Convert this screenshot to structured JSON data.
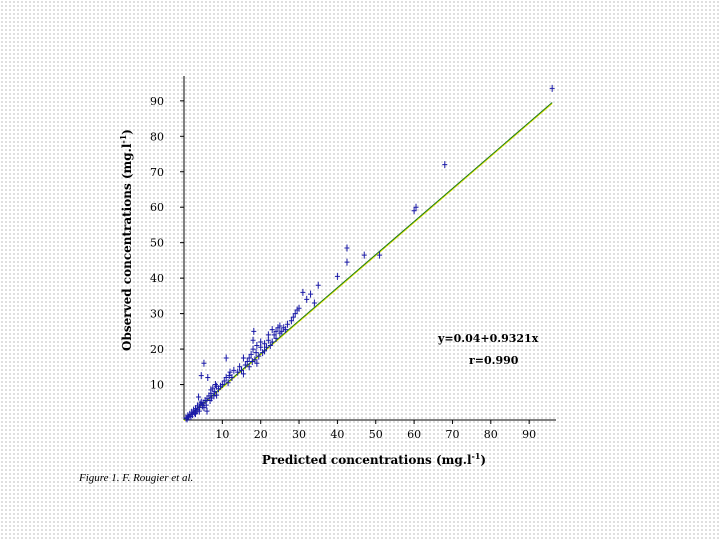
{
  "chart_data": {
    "type": "scatter",
    "xlabel": "Predicted concentrations (mg.l",
    "xlabel_sup": "-1",
    "xlabel_end": ")",
    "ylabel": "Observed concentrations (mg.l",
    "ylabel_sup": "-1",
    "ylabel_end": ")",
    "xlim": [
      0,
      97
    ],
    "ylim": [
      0,
      97
    ],
    "xticks": [
      10,
      20,
      30,
      40,
      50,
      60,
      70,
      80,
      90
    ],
    "yticks": [
      10,
      20,
      30,
      40,
      50,
      60,
      70,
      80,
      90
    ],
    "grid": false,
    "marker_color": "#1a1aa8",
    "fit_color_outer": "#e3e300",
    "fit_color_inner": "#1a7a1a",
    "annotations": {
      "equation": "y=0.04+0.9321x",
      "r": "r=0.990"
    },
    "fit_line": {
      "intercept": 0.04,
      "slope": 0.9321,
      "x_range": [
        0,
        96
      ]
    },
    "points": [
      [
        0.5,
        0.6
      ],
      [
        0.8,
        0.3
      ],
      [
        1,
        1.2
      ],
      [
        1.2,
        0.8
      ],
      [
        1.5,
        1.6
      ],
      [
        1.8,
        1
      ],
      [
        2,
        2.2
      ],
      [
        2.2,
        1.5
      ],
      [
        2.5,
        2.8
      ],
      [
        2.8,
        2
      ],
      [
        3,
        3.2
      ],
      [
        3,
        1.8
      ],
      [
        3.3,
        2.5
      ],
      [
        3.5,
        4
      ],
      [
        3.6,
        3
      ],
      [
        3.8,
        6.5
      ],
      [
        4,
        3.5
      ],
      [
        4,
        2.5
      ],
      [
        4.2,
        4.5
      ],
      [
        4.5,
        5
      ],
      [
        4.5,
        12.5
      ],
      [
        4.8,
        4
      ],
      [
        5,
        4.8
      ],
      [
        5.2,
        3.5
      ],
      [
        5.2,
        16
      ],
      [
        5.5,
        5.5
      ],
      [
        5.8,
        4.2
      ],
      [
        6,
        6
      ],
      [
        6,
        2.5
      ],
      [
        6.2,
        12
      ],
      [
        6.5,
        6.8
      ],
      [
        6.8,
        5.5
      ],
      [
        7,
        7.5
      ],
      [
        7,
        8.5
      ],
      [
        7.2,
        6.2
      ],
      [
        7.5,
        9
      ],
      [
        7.8,
        6.8
      ],
      [
        8,
        8
      ],
      [
        8.2,
        10
      ],
      [
        8.5,
        7
      ],
      [
        8.5,
        9.5
      ],
      [
        9,
        8.8
      ],
      [
        9.5,
        9.5
      ],
      [
        10,
        10
      ],
      [
        10.5,
        11
      ],
      [
        11,
        17.5
      ],
      [
        11,
        12
      ],
      [
        11.5,
        10.5
      ],
      [
        11.8,
        12.5
      ],
      [
        12,
        13.5
      ],
      [
        12.5,
        12
      ],
      [
        13,
        14
      ],
      [
        14,
        13.5
      ],
      [
        14.5,
        15
      ],
      [
        15,
        14
      ],
      [
        15.5,
        13
      ],
      [
        15.5,
        17.5
      ],
      [
        16,
        15.5
      ],
      [
        16.5,
        16.5
      ],
      [
        17,
        15
      ],
      [
        17,
        17.5
      ],
      [
        17.5,
        18.5
      ],
      [
        17.8,
        16.5
      ],
      [
        18,
        20
      ],
      [
        18,
        22.5
      ],
      [
        18.2,
        25
      ],
      [
        18.5,
        17
      ],
      [
        18.8,
        19
      ],
      [
        19,
        21
      ],
      [
        19,
        16
      ],
      [
        19.5,
        18
      ],
      [
        20,
        20.5
      ],
      [
        20,
        22
      ],
      [
        20.5,
        19
      ],
      [
        21,
        21.5
      ],
      [
        21,
        19.5
      ],
      [
        21.5,
        20.5
      ],
      [
        22,
        22.5
      ],
      [
        22,
        24
      ],
      [
        22.5,
        21
      ],
      [
        23,
        22
      ],
      [
        23,
        25.5
      ],
      [
        23.5,
        24
      ],
      [
        24,
        25
      ],
      [
        24,
        23
      ],
      [
        24.5,
        26
      ],
      [
        25,
        24.5
      ],
      [
        25,
        26.5
      ],
      [
        25.5,
        25
      ],
      [
        26,
        26
      ],
      [
        26.5,
        25.5
      ],
      [
        27,
        27
      ],
      [
        28,
        28
      ],
      [
        28.5,
        29
      ],
      [
        29,
        30
      ],
      [
        29.5,
        31
      ],
      [
        30,
        31.5
      ],
      [
        31,
        36
      ],
      [
        32,
        34
      ],
      [
        33,
        35.5
      ],
      [
        34,
        33
      ],
      [
        35,
        38
      ],
      [
        40,
        40.5
      ],
      [
        42.5,
        44.5
      ],
      [
        42.5,
        48.5
      ],
      [
        47,
        46.5
      ],
      [
        51,
        46.5
      ],
      [
        60,
        59
      ],
      [
        60.5,
        60
      ],
      [
        68,
        72
      ],
      [
        96,
        93.5
      ]
    ]
  },
  "caption": "Figure 1. F. Rougier et al."
}
